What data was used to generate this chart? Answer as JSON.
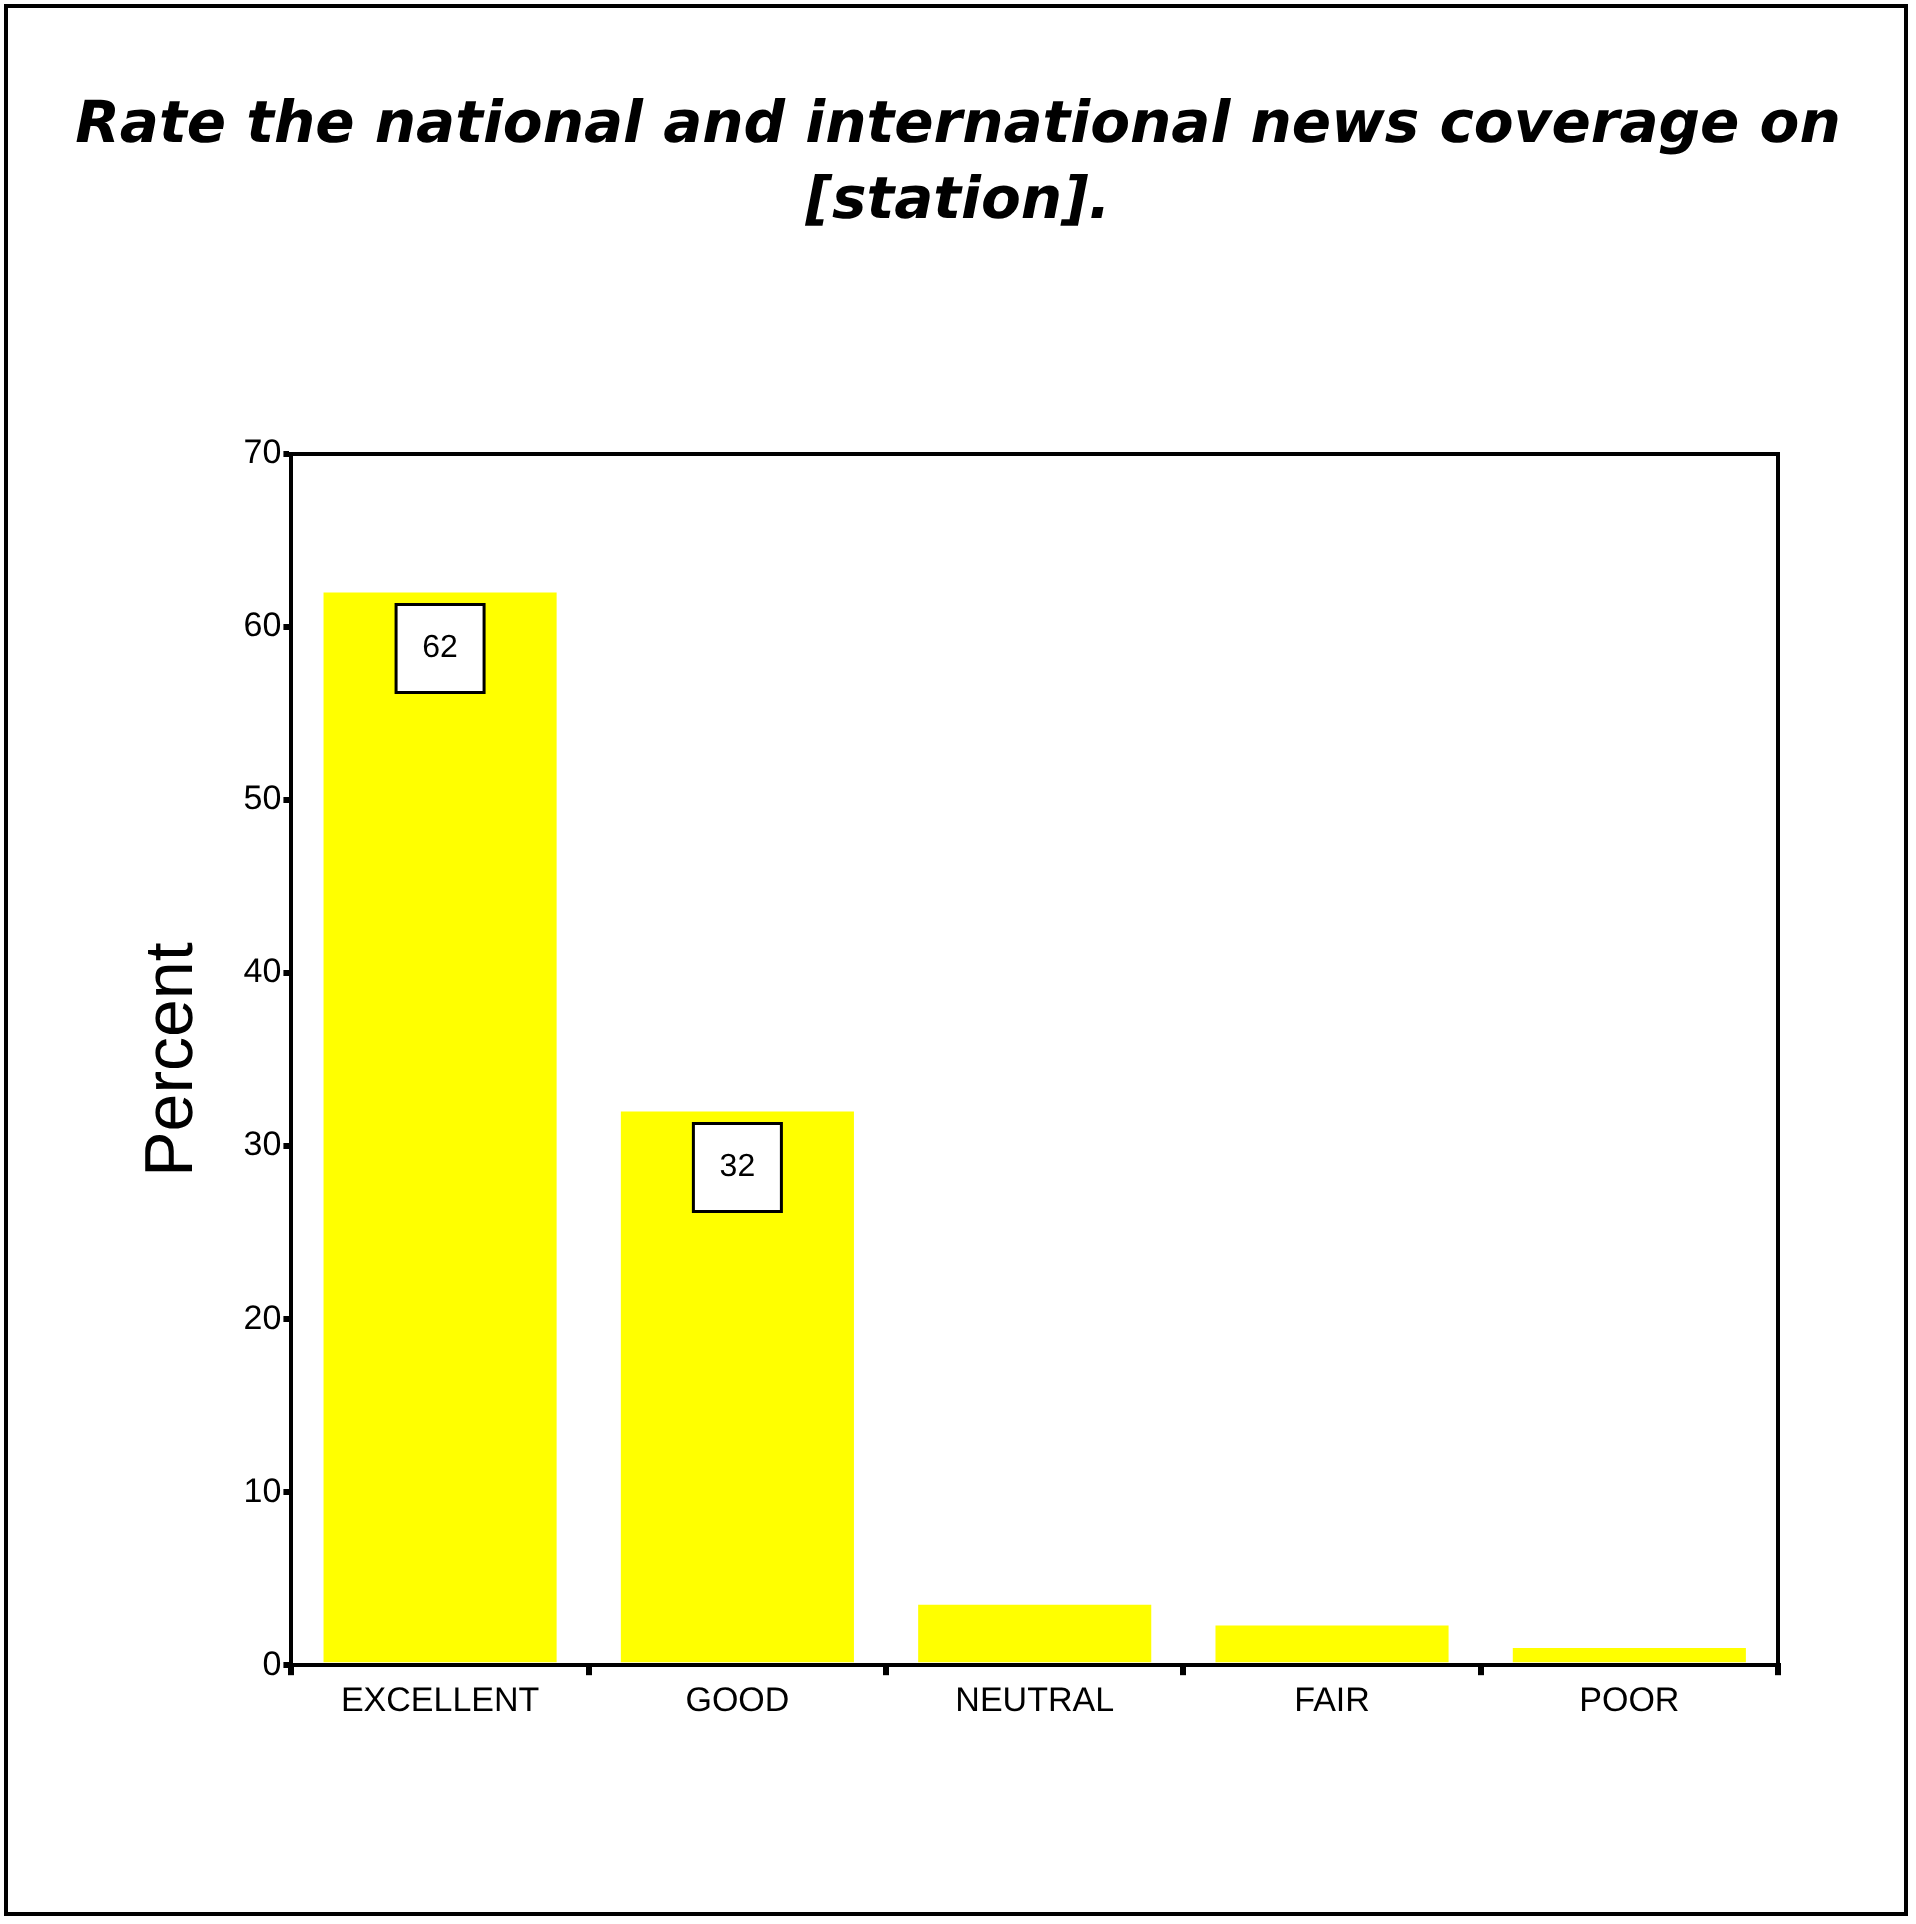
{
  "chart_data": {
    "type": "bar",
    "title": "Rate the national and international news coverage on [station].",
    "ylabel": "Percent",
    "categories": [
      "EXCELLENT",
      "GOOD",
      "NEUTRAL",
      "FAIR",
      "POOR"
    ],
    "values": [
      62,
      32,
      3.5,
      2.3,
      1.0
    ],
    "value_labels": [
      "62",
      "32",
      null,
      null,
      null
    ],
    "color": "#ffff00",
    "ylim": [
      0,
      70
    ],
    "yticks": [
      0,
      10,
      20,
      30,
      40,
      50,
      60,
      70
    ],
    "grid": false,
    "legend": false
  }
}
